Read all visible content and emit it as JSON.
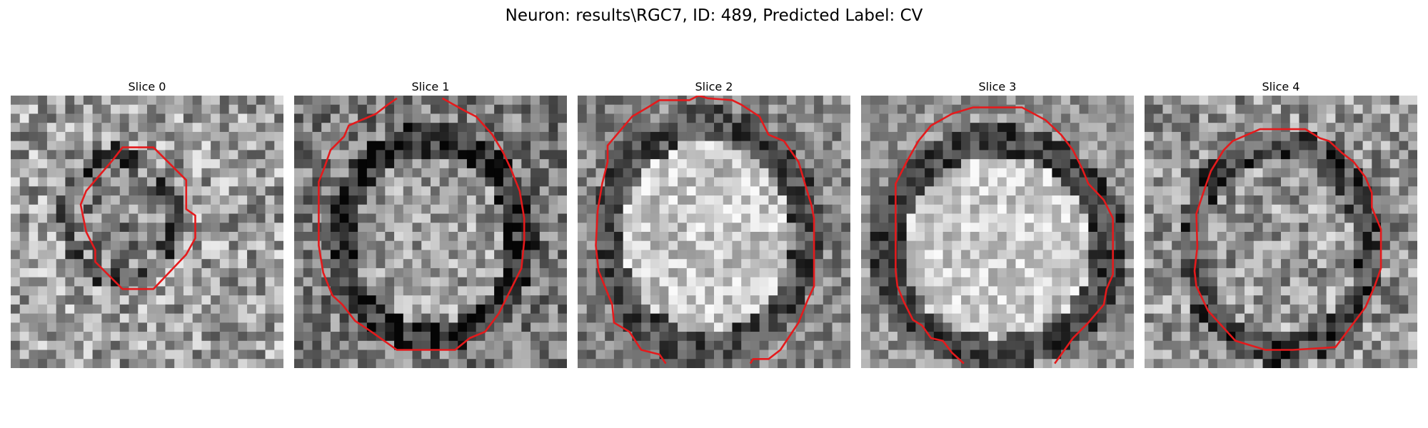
{
  "figure": {
    "suptitle": "Neuron: results\\RGC7, ID: 489, Predicted Label: CV"
  },
  "panels": [
    {
      "title": "Slice 0"
    },
    {
      "title": "Slice 1"
    },
    {
      "title": "Slice 2"
    },
    {
      "title": "Slice 3"
    },
    {
      "title": "Slice 4"
    }
  ],
  "colors": {
    "contour": "#e41a1c",
    "background": "#ffffff"
  }
}
